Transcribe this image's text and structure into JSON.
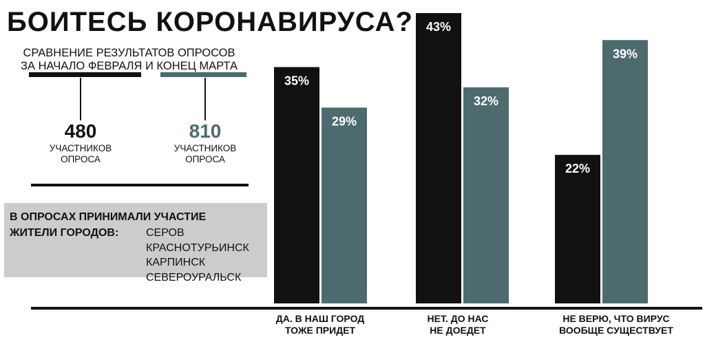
{
  "header": {
    "title": "БОИТЕСЬ КОРОНАВИРУСА?",
    "subtitle_line1": "СРАВНЕНИЕ РЕЗУЛЬТАТОВ ОПРОСОВ",
    "subtitle_line2": "ЗА НАЧАЛО ФЕВРАЛЯ И КОНЕЦ МАРТА"
  },
  "legend": [
    {
      "count": "480",
      "label_line1": "УЧАСТНИКОВ",
      "label_line2": "ОПРОСА",
      "color": "#111111"
    },
    {
      "count": "810",
      "label_line1": "УЧАСТНИКОВ",
      "label_line2": "ОПРОСА",
      "color": "#4d6b6f"
    }
  ],
  "info": {
    "heading_line1": "В ОПРОСАХ ПРИНИМАЛИ УЧАСТИЕ",
    "heading_line2": "ЖИТЕЛИ ГОРОДОВ:",
    "cities": [
      "СЕРОВ",
      "КРАСНОТУРЬИНСК",
      "КАРПИНСК",
      "СЕВЕРОУРАЛЬСК"
    ]
  },
  "colors": {
    "dark": "#111111",
    "teal": "#4d6b6f",
    "box": "#cccccc"
  },
  "chart_data": {
    "type": "bar",
    "categories": [
      [
        "ДА. В НАШ ГОРОД",
        "ТОЖЕ ПРИДЕТ"
      ],
      [
        "НЕТ. ДО НАС",
        "НЕ ДОЕДЕТ"
      ],
      [
        "НЕ ВЕРЮ, ЧТО ВИРУС",
        "ВООБЩЕ СУЩЕСТВУЕТ"
      ]
    ],
    "series": [
      {
        "values": [
          35,
          43,
          22
        ],
        "labels": [
          "35%",
          "43%",
          "22%"
        ],
        "color": "#111111"
      },
      {
        "values": [
          29,
          32,
          39
        ],
        "labels": [
          "29%",
          "32%",
          "39%"
        ],
        "color": "#4d6b6f"
      }
    ],
    "ylim": [
      0,
      43
    ],
    "unit": "%"
  }
}
